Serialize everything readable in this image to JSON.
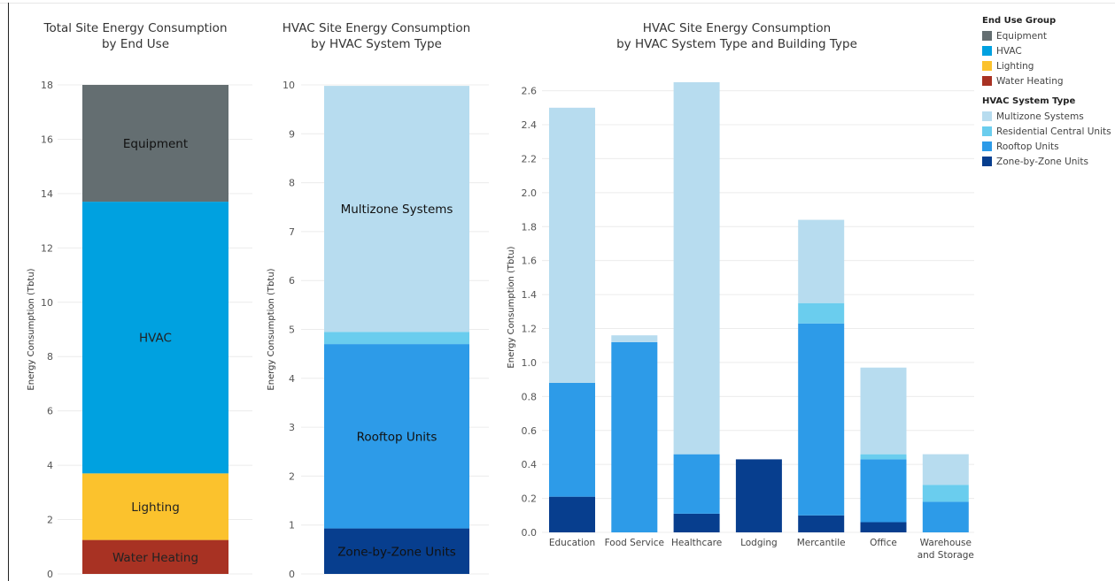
{
  "chart_data": [
    {
      "type": "bar",
      "stacked": true,
      "title": [
        "Total Site Energy Consumption",
        "by End Use"
      ],
      "ylabel": "Energy Consumption (Tbtu)",
      "ylim": [
        0,
        18
      ],
      "yticks": [
        0,
        2,
        4,
        6,
        8,
        10,
        12,
        14,
        16,
        18
      ],
      "categories": [
        ""
      ],
      "series": [
        {
          "name": "Water Heating",
          "values": [
            1.25
          ],
          "label": "Water Heating",
          "color": "#A83223",
          "label_color": "#222222"
        },
        {
          "name": "Lighting",
          "values": [
            2.45
          ],
          "label": "Lighting",
          "color": "#FBC22D",
          "label_color": "#222222"
        },
        {
          "name": "HVAC",
          "values": [
            10.0
          ],
          "label": "HVAC",
          "color": "#00A1E0",
          "label_color": "#222222"
        },
        {
          "name": "Equipment",
          "values": [
            4.3
          ],
          "label": "Equipment",
          "color": "#646E71",
          "label_color": "#111111"
        }
      ]
    },
    {
      "type": "bar",
      "stacked": true,
      "title": [
        "HVAC Site Energy Consumption",
        "by HVAC System Type"
      ],
      "ylabel": "Energy Consumption (Tbtu)",
      "ylim": [
        0,
        10
      ],
      "yticks": [
        0,
        1,
        2,
        3,
        4,
        5,
        6,
        7,
        8,
        9,
        10
      ],
      "categories": [
        ""
      ],
      "series": [
        {
          "name": "Zone-by-Zone Units",
          "values": [
            0.93
          ],
          "label": "Zone-by-Zone Units",
          "color": "#073E8E",
          "label_color": "#111111"
        },
        {
          "name": "Rooftop Units",
          "values": [
            3.77
          ],
          "label": "Rooftop Units",
          "color": "#2D9BE8",
          "label_color": "#111111"
        },
        {
          "name": "Residential Central Units",
          "values": [
            0.25
          ],
          "label": "",
          "color": "#6ACDEE",
          "label_color": "#111111"
        },
        {
          "name": "Multizone Systems",
          "values": [
            5.03
          ],
          "label": "Multizone Systems",
          "color": "#B7DCEF",
          "label_color": "#111111"
        }
      ]
    },
    {
      "type": "bar",
      "stacked": true,
      "title": [
        "HVAC Site Energy Consumption",
        "by HVAC System Type and Building Type"
      ],
      "ylabel": "Energy Consumption (Tbtu)",
      "ylim": [
        0,
        2.65
      ],
      "yticks": [
        0.0,
        0.2,
        0.4,
        0.6,
        0.8,
        1.0,
        1.2,
        1.4,
        1.6,
        1.8,
        2.0,
        2.2,
        2.4,
        2.6
      ],
      "categories": [
        "Education",
        "Food Service",
        "Healthcare",
        "Lodging",
        "Mercantile",
        "Office",
        [
          "Warehouse",
          "and Storage"
        ]
      ],
      "series": [
        {
          "name": "Zone-by-Zone Units",
          "values": [
            0.21,
            0,
            0.11,
            0.43,
            0.1,
            0.06,
            0
          ],
          "color": "#073E8E"
        },
        {
          "name": "Rooftop Units",
          "values": [
            0.67,
            1.12,
            0.35,
            0,
            1.13,
            0.37,
            0.18
          ],
          "color": "#2D9BE8"
        },
        {
          "name": "Residential Central Units",
          "values": [
            0,
            0,
            0,
            0,
            0.12,
            0.03,
            0.1
          ],
          "color": "#6ACDEE"
        },
        {
          "name": "Multizone Systems",
          "values": [
            1.62,
            0.04,
            2.19,
            0,
            0.49,
            0.51,
            0.18
          ],
          "color": "#B7DCEF"
        }
      ]
    }
  ],
  "legend": {
    "end_use": {
      "title": "End Use Group",
      "items": [
        {
          "label": "Equipment",
          "color": "#646E71"
        },
        {
          "label": "HVAC",
          "color": "#00A1E0"
        },
        {
          "label": "Lighting",
          "color": "#FBC22D"
        },
        {
          "label": "Water Heating",
          "color": "#A83223"
        }
      ]
    },
    "hvac_type": {
      "title": "HVAC System Type",
      "items": [
        {
          "label": "Multizone Systems",
          "color": "#B7DCEF"
        },
        {
          "label": "Residential Central Units",
          "color": "#6ACDEE"
        },
        {
          "label": "Rooftop Units",
          "color": "#2D9BE8"
        },
        {
          "label": "Zone-by-Zone Units",
          "color": "#073E8E"
        }
      ]
    }
  }
}
